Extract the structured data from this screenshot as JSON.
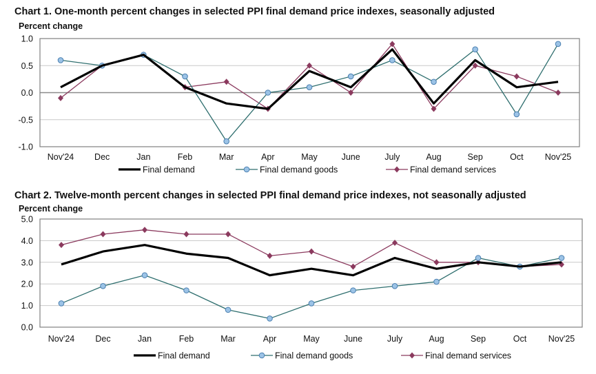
{
  "colors": {
    "final_demand": "#000000",
    "goods": "#2e6e6e",
    "goods_marker": "#9cc3e6",
    "services": "#8b3a5e",
    "grid": "#c8c8c8",
    "axis": "#808080"
  },
  "chart_data": [
    {
      "type": "line",
      "title": "Chart 1. One-month percent changes in selected PPI final demand price indexes, seasonally adjusted",
      "ylabel": "Percent change",
      "xlabel": "",
      "ylim": [
        -1.0,
        1.0
      ],
      "yticks": [
        1.0,
        0.5,
        0.0,
        -0.5,
        -1.0
      ],
      "ytick_labels": [
        "1.0",
        "0.5",
        "0.0",
        "-0.5",
        "-1.0"
      ],
      "grid": true,
      "legend": "bottom",
      "categories": [
        "Nov'24",
        "Dec",
        "Jan",
        "Feb",
        "Mar",
        "Apr",
        "May",
        "June",
        "July",
        "Aug",
        "Sep",
        "Oct",
        "Nov'25"
      ],
      "series": [
        {
          "name": "Final demand",
          "values": [
            0.1,
            0.5,
            0.7,
            0.1,
            -0.2,
            -0.3,
            0.4,
            0.1,
            0.8,
            -0.2,
            0.6,
            0.1,
            0.2
          ]
        },
        {
          "name": "Final demand goods",
          "values": [
            0.6,
            0.5,
            0.7,
            0.3,
            -0.9,
            0.0,
            0.1,
            0.3,
            0.6,
            0.2,
            0.8,
            -0.4,
            0.9
          ]
        },
        {
          "name": "Final demand services",
          "values": [
            -0.1,
            0.5,
            0.7,
            0.1,
            0.2,
            -0.3,
            0.5,
            0.0,
            0.9,
            -0.3,
            0.5,
            0.3,
            0.0
          ]
        }
      ]
    },
    {
      "type": "line",
      "title": "Chart 2. Twelve-month percent changes in selected PPI final demand price indexes, not seasonally adjusted",
      "ylabel": "Percent change",
      "xlabel": "",
      "ylim": [
        0.0,
        5.0
      ],
      "yticks": [
        5.0,
        4.0,
        3.0,
        2.0,
        1.0,
        0.0
      ],
      "ytick_labels": [
        "5.0",
        "4.0",
        "3.0",
        "2.0",
        "1.0",
        "0.0"
      ],
      "grid": true,
      "legend": "bottom",
      "categories": [
        "Nov'24",
        "Dec",
        "Jan",
        "Feb",
        "Mar",
        "Apr",
        "May",
        "June",
        "July",
        "Aug",
        "Sep",
        "Oct",
        "Nov'25"
      ],
      "series": [
        {
          "name": "Final demand",
          "values": [
            2.9,
            3.5,
            3.8,
            3.4,
            3.2,
            2.4,
            2.7,
            2.4,
            3.2,
            2.7,
            3.0,
            2.8,
            3.0
          ]
        },
        {
          "name": "Final demand goods",
          "values": [
            1.1,
            1.9,
            2.4,
            1.7,
            0.8,
            0.4,
            1.1,
            1.7,
            1.9,
            2.1,
            3.2,
            2.8,
            3.2
          ]
        },
        {
          "name": "Final demand services",
          "values": [
            3.8,
            4.3,
            4.5,
            4.3,
            4.3,
            3.3,
            3.5,
            2.8,
            3.9,
            3.0,
            3.0,
            2.8,
            2.9
          ]
        }
      ]
    }
  ]
}
